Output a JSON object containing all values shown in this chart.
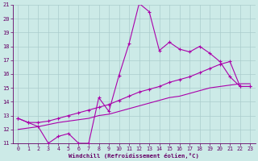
{
  "xlabel": "Windchill (Refroidissement éolien,°C)",
  "background_color": "#cceae7",
  "line_color": "#aa00aa",
  "grid_color": "#aacccc",
  "x": [
    0,
    1,
    2,
    3,
    4,
    5,
    6,
    7,
    8,
    9,
    10,
    11,
    12,
    13,
    14,
    15,
    16,
    17,
    18,
    19,
    20,
    21,
    22,
    23
  ],
  "line1": [
    12.8,
    12.5,
    12.2,
    11.0,
    11.5,
    11.7,
    11.0,
    11.0,
    14.3,
    13.3,
    15.9,
    18.2,
    21.1,
    20.5,
    17.7,
    18.3,
    17.8,
    17.6,
    18.0,
    17.5,
    16.9,
    15.8,
    15.1,
    15.1
  ],
  "line2": [
    12.8,
    12.5,
    12.5,
    12.6,
    12.8,
    13.0,
    13.2,
    13.4,
    13.6,
    13.8,
    14.1,
    14.4,
    14.7,
    14.9,
    15.1,
    15.4,
    15.6,
    15.8,
    16.1,
    16.4,
    16.7,
    16.9,
    15.1,
    15.1
  ],
  "line3": [
    12.0,
    12.1,
    12.2,
    12.35,
    12.5,
    12.6,
    12.7,
    12.8,
    13.0,
    13.1,
    13.3,
    13.5,
    13.7,
    13.9,
    14.1,
    14.3,
    14.4,
    14.6,
    14.8,
    15.0,
    15.1,
    15.2,
    15.3,
    15.3
  ],
  "ylim": [
    11,
    21
  ],
  "xlim": [
    -0.5,
    23.5
  ],
  "yticks": [
    11,
    12,
    13,
    14,
    15,
    16,
    17,
    18,
    19,
    20,
    21
  ],
  "xticks": [
    0,
    1,
    2,
    3,
    4,
    5,
    6,
    7,
    8,
    9,
    10,
    11,
    12,
    13,
    14,
    15,
    16,
    17,
    18,
    19,
    20,
    21,
    22,
    23
  ]
}
